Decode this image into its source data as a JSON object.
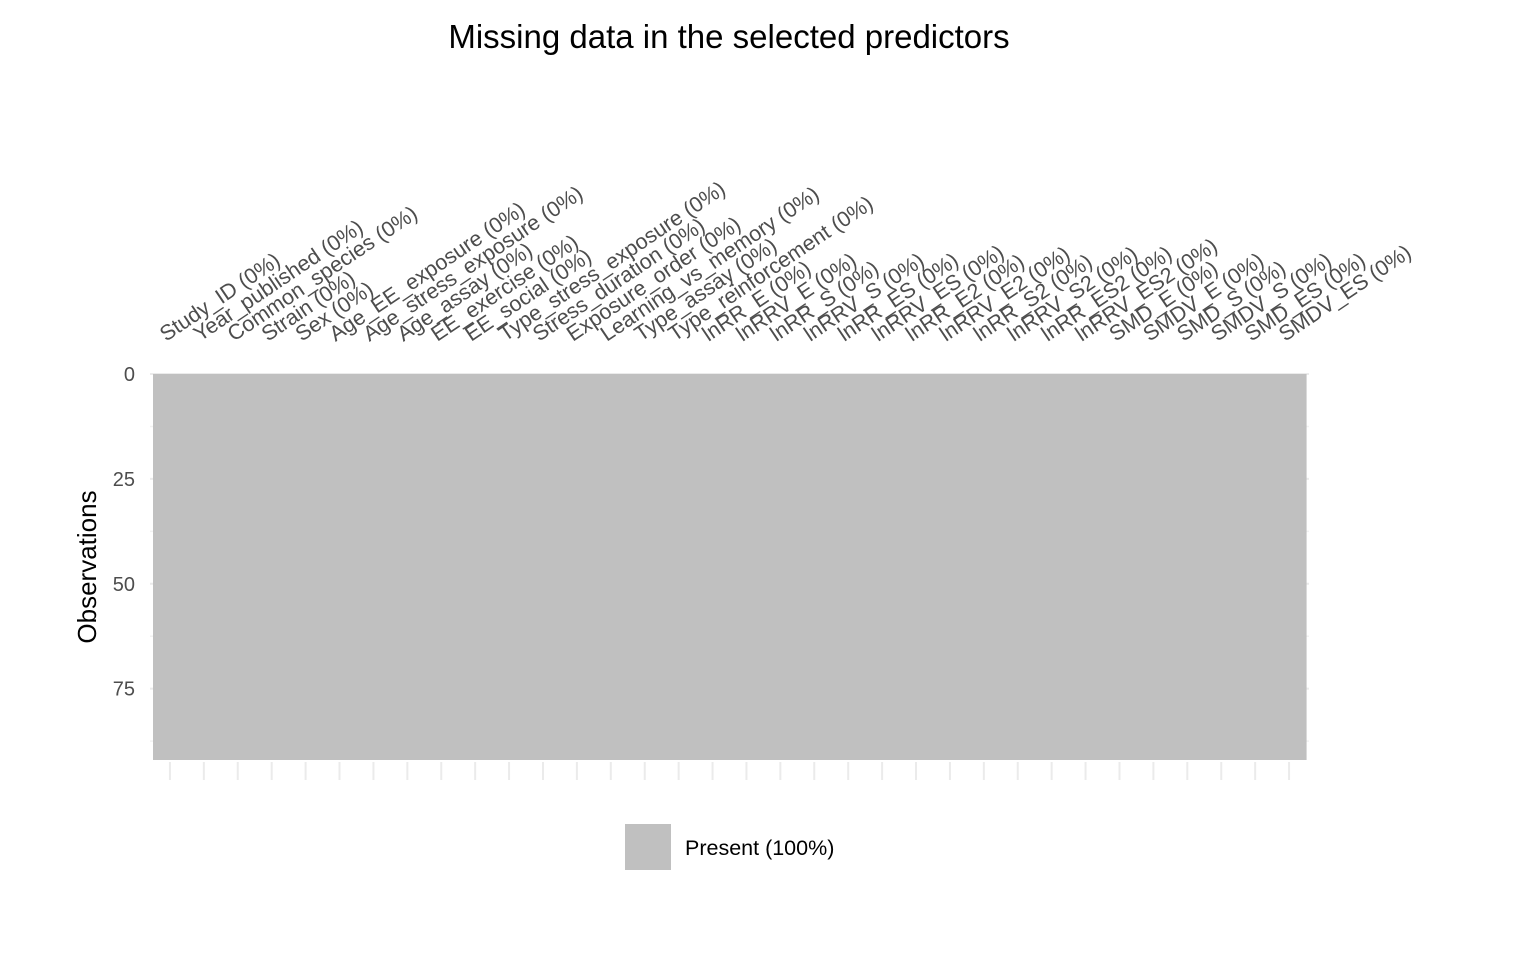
{
  "chart_data": {
    "type": "heatmap",
    "title": "Missing data in the selected predictors",
    "xlabel": "",
    "ylabel": "Observations",
    "columns": [
      "Study_ID (0%)",
      "Year_published (0%)",
      "Common_species (0%)",
      "Strain (0%)",
      "Sex (0%)",
      "Age_EE_exposure (0%)",
      "Age_stress_exposure (0%)",
      "Age_assay (0%)",
      "EE_exercise (0%)",
      "EE_social (0%)",
      "Type_stress_exposure (0%)",
      "Stress_duration (0%)",
      "Exposure_order (0%)",
      "Learning_vs_memory (0%)",
      "Type_assay (0%)",
      "Type_reinforcement (0%)",
      "lnRR_E (0%)",
      "lnRRV_E (0%)",
      "lnRR_S (0%)",
      "lnRRV_S (0%)",
      "lnRR_ES (0%)",
      "lnRRV_ES (0%)",
      "lnRR_E2 (0%)",
      "lnRRV_E2 (0%)",
      "lnRR_S2 (0%)",
      "lnRRV_S2 (0%)",
      "lnRR_ES2 (0%)",
      "lnRRV_ES2 (0%)",
      "SMD_E (0%)",
      "SMDV_E (0%)",
      "SMD_S (0%)",
      "SMDV_S (0%)",
      "SMD_ES (0%)",
      "SMDV_ES (0%)"
    ],
    "y_ticks": [
      "0",
      "25",
      "50",
      "75"
    ],
    "y_tick_values": [
      0,
      25,
      50,
      75
    ],
    "observations": 92,
    "ylim": [
      0,
      92
    ],
    "y_reversed": true,
    "present_fraction": 1.0,
    "missing_fraction": 0.0,
    "grid": true,
    "legend_position": "bottom",
    "legend": [
      {
        "label": "Present (100%)",
        "color": "#c0c0c0"
      }
    ]
  }
}
